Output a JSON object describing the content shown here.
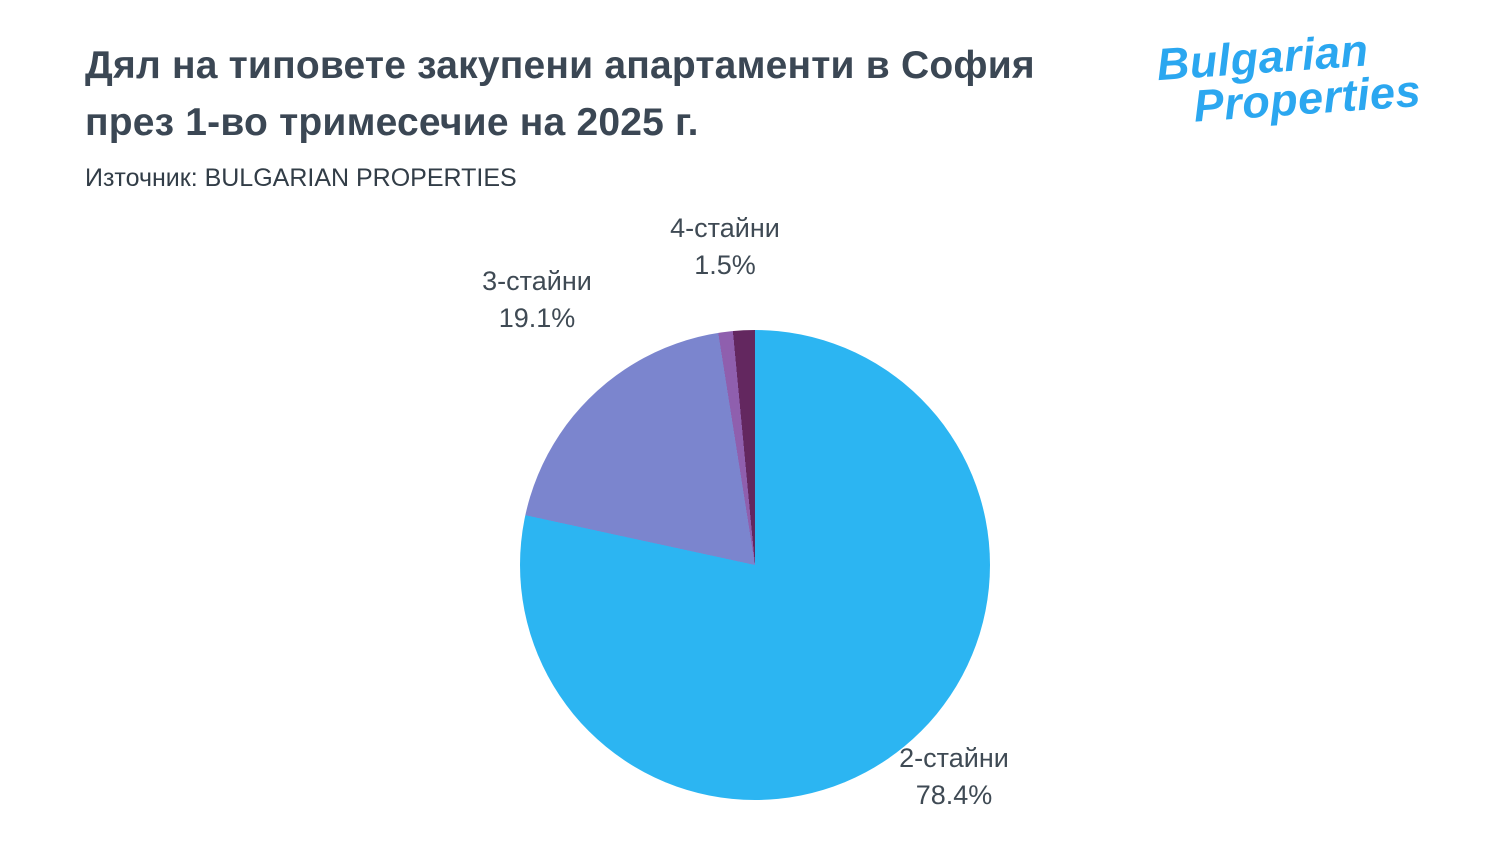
{
  "header": {
    "title_line1": "Дял на типовете закупени апартаменти в София",
    "title_line2": "през 1-во тримесечие на 2025 г.",
    "source": "Източник: BULGARIAN PROPERTIES"
  },
  "logo": {
    "line1": "Bulgarian",
    "line2": "Properties",
    "color": "#2BA7F0"
  },
  "chart_data": {
    "type": "pie",
    "title": "Дял на типовете закупени апартаменти в София през 1-во тримесечие на 2025 г.",
    "source": "Източник: BULGARIAN PROPERTIES",
    "start_angle_deg": 0,
    "direction": "clockwise",
    "legend_position": "none",
    "slices": [
      {
        "label": "2-стайни",
        "pct": "78.4%",
        "value": 78.4,
        "color": "#2CB5F2"
      },
      {
        "label": "3-стайни",
        "pct": "19.1%",
        "value": 19.1,
        "color": "#7B85CE"
      },
      {
        "label": "",
        "pct": "",
        "value": 1.0,
        "color": "#8F5FAE",
        "note": "thin unlabeled sliver, value estimated from remainder"
      },
      {
        "label": "4-стайни",
        "pct": "1.5%",
        "value": 1.5,
        "color": "#63275F"
      }
    ]
  }
}
